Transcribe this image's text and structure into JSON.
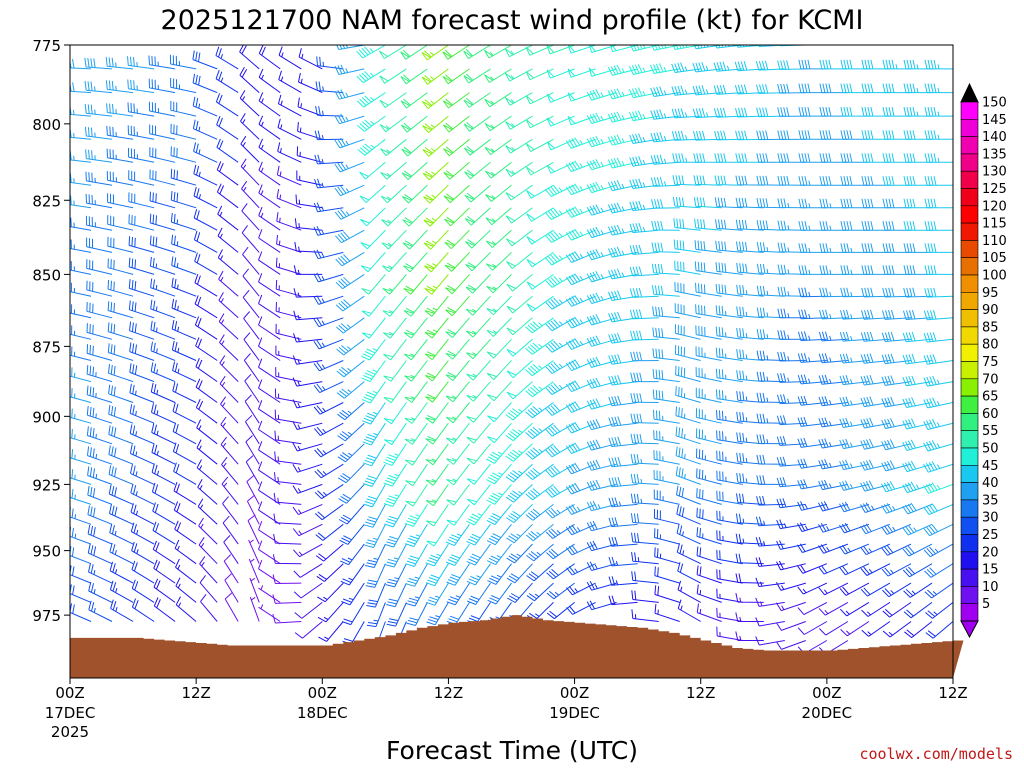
{
  "chart_data": {
    "type": "wind-barb-profile",
    "title": "2025121700 NAM forecast wind profile (kt) for KCMI",
    "xlabel": "Forecast Time (UTC)",
    "ylabel": "",
    "credit": "coolwx.com/models",
    "units": "kt",
    "ylim": [
      775,
      1000
    ],
    "y_ticks": [
      775,
      800,
      825,
      850,
      875,
      900,
      925,
      950,
      975
    ],
    "y_tick_labels": [
      "775",
      "800",
      "825",
      "850",
      "875",
      "900",
      "925",
      "950",
      "975"
    ],
    "xlim_hours": [
      0,
      84
    ],
    "x_ticks": [
      {
        "hour": 0,
        "label": "00Z",
        "date": "17DEC",
        "year": "2025"
      },
      {
        "hour": 12,
        "label": "12Z",
        "date": "",
        "year": ""
      },
      {
        "hour": 24,
        "label": "00Z",
        "date": "18DEC",
        "year": ""
      },
      {
        "hour": 36,
        "label": "12Z",
        "date": "",
        "year": ""
      },
      {
        "hour": 48,
        "label": "00Z",
        "date": "19DEC",
        "year": ""
      },
      {
        "hour": 60,
        "label": "12Z",
        "date": "",
        "year": ""
      },
      {
        "hour": 72,
        "label": "00Z",
        "date": "20DEC",
        "year": ""
      },
      {
        "hour": 84,
        "label": "12Z",
        "date": "",
        "year": ""
      }
    ],
    "surface_pressure_mb": {
      "hours": [
        0,
        3,
        6,
        9,
        12,
        15,
        18,
        21,
        24,
        27,
        30,
        33,
        36,
        39,
        42,
        45,
        48,
        51,
        54,
        57,
        60,
        63,
        66,
        69,
        72,
        75,
        78,
        81,
        84
      ],
      "values": [
        984,
        984,
        984,
        985,
        986,
        987,
        987,
        987,
        987,
        985,
        983,
        980,
        978,
        977,
        975,
        977,
        978,
        979,
        980,
        982,
        985,
        988,
        989,
        989,
        989,
        988,
        987,
        986,
        985
      ]
    },
    "wind_profile": {
      "description": "Approximate wind speed (kt) and direction (deg from) at representative pressure levels",
      "levels_mb": [
        775,
        850,
        925,
        975
      ],
      "series": [
        {
          "level_mb": 775,
          "hours": [
            0,
            12,
            18,
            24,
            30,
            36,
            42,
            48,
            60,
            72,
            84
          ],
          "speed_kt": [
            40,
            35,
            20,
            15,
            45,
            65,
            55,
            50,
            45,
            40,
            45
          ],
          "direction_deg": [
            270,
            280,
            310,
            300,
            240,
            235,
            240,
            250,
            260,
            270,
            270
          ]
        },
        {
          "level_mb": 850,
          "hours": [
            0,
            12,
            18,
            24,
            30,
            36,
            42,
            48,
            60,
            72,
            84
          ],
          "speed_kt": [
            35,
            25,
            10,
            15,
            50,
            65,
            55,
            45,
            40,
            35,
            40
          ],
          "direction_deg": [
            280,
            290,
            320,
            270,
            220,
            220,
            225,
            240,
            280,
            270,
            270
          ]
        },
        {
          "level_mb": 925,
          "hours": [
            0,
            12,
            18,
            24,
            30,
            36,
            42,
            48,
            60,
            72,
            84
          ],
          "speed_kt": [
            40,
            20,
            10,
            15,
            40,
            55,
            45,
            40,
            35,
            30,
            45
          ],
          "direction_deg": [
            285,
            300,
            330,
            250,
            210,
            215,
            220,
            240,
            290,
            260,
            250
          ]
        },
        {
          "level_mb": 975,
          "hours": [
            0,
            12,
            18,
            24,
            30,
            36,
            42,
            48,
            60,
            72,
            84
          ],
          "speed_kt": [
            30,
            15,
            5,
            10,
            25,
            30,
            25,
            20,
            15,
            10,
            20
          ],
          "direction_deg": [
            290,
            310,
            340,
            230,
            200,
            210,
            215,
            230,
            300,
            240,
            230
          ]
        }
      ]
    },
    "colorbar": {
      "labels": [
        "150",
        "145",
        "140",
        "135",
        "130",
        "125",
        "120",
        "115",
        "110",
        "105",
        "100",
        "95",
        "90",
        "85",
        "80",
        "75",
        "70",
        "65",
        "60",
        "55",
        "50",
        "45",
        "40",
        "35",
        "30",
        "25",
        "20",
        "15",
        "10",
        "5"
      ],
      "colors": [
        "#ff00ff",
        "#f000d8",
        "#f000b0",
        "#f00088",
        "#f00048",
        "#f00018",
        "#ff0000",
        "#f01800",
        "#e84a00",
        "#e87000",
        "#f09000",
        "#f0a800",
        "#f0c000",
        "#f0d800",
        "#f0f000",
        "#c8f000",
        "#88f000",
        "#40f040",
        "#30f080",
        "#30f0b0",
        "#20f0d8",
        "#18c8f0",
        "#20a0f0",
        "#1878f0",
        "#1050f0",
        "#1030f0",
        "#2010f0",
        "#4810f0",
        "#7010f0",
        "#a000f0"
      ],
      "top_color": "#000000",
      "bottom_color": "#a000f0"
    },
    "ground_color": "#a0522d"
  }
}
